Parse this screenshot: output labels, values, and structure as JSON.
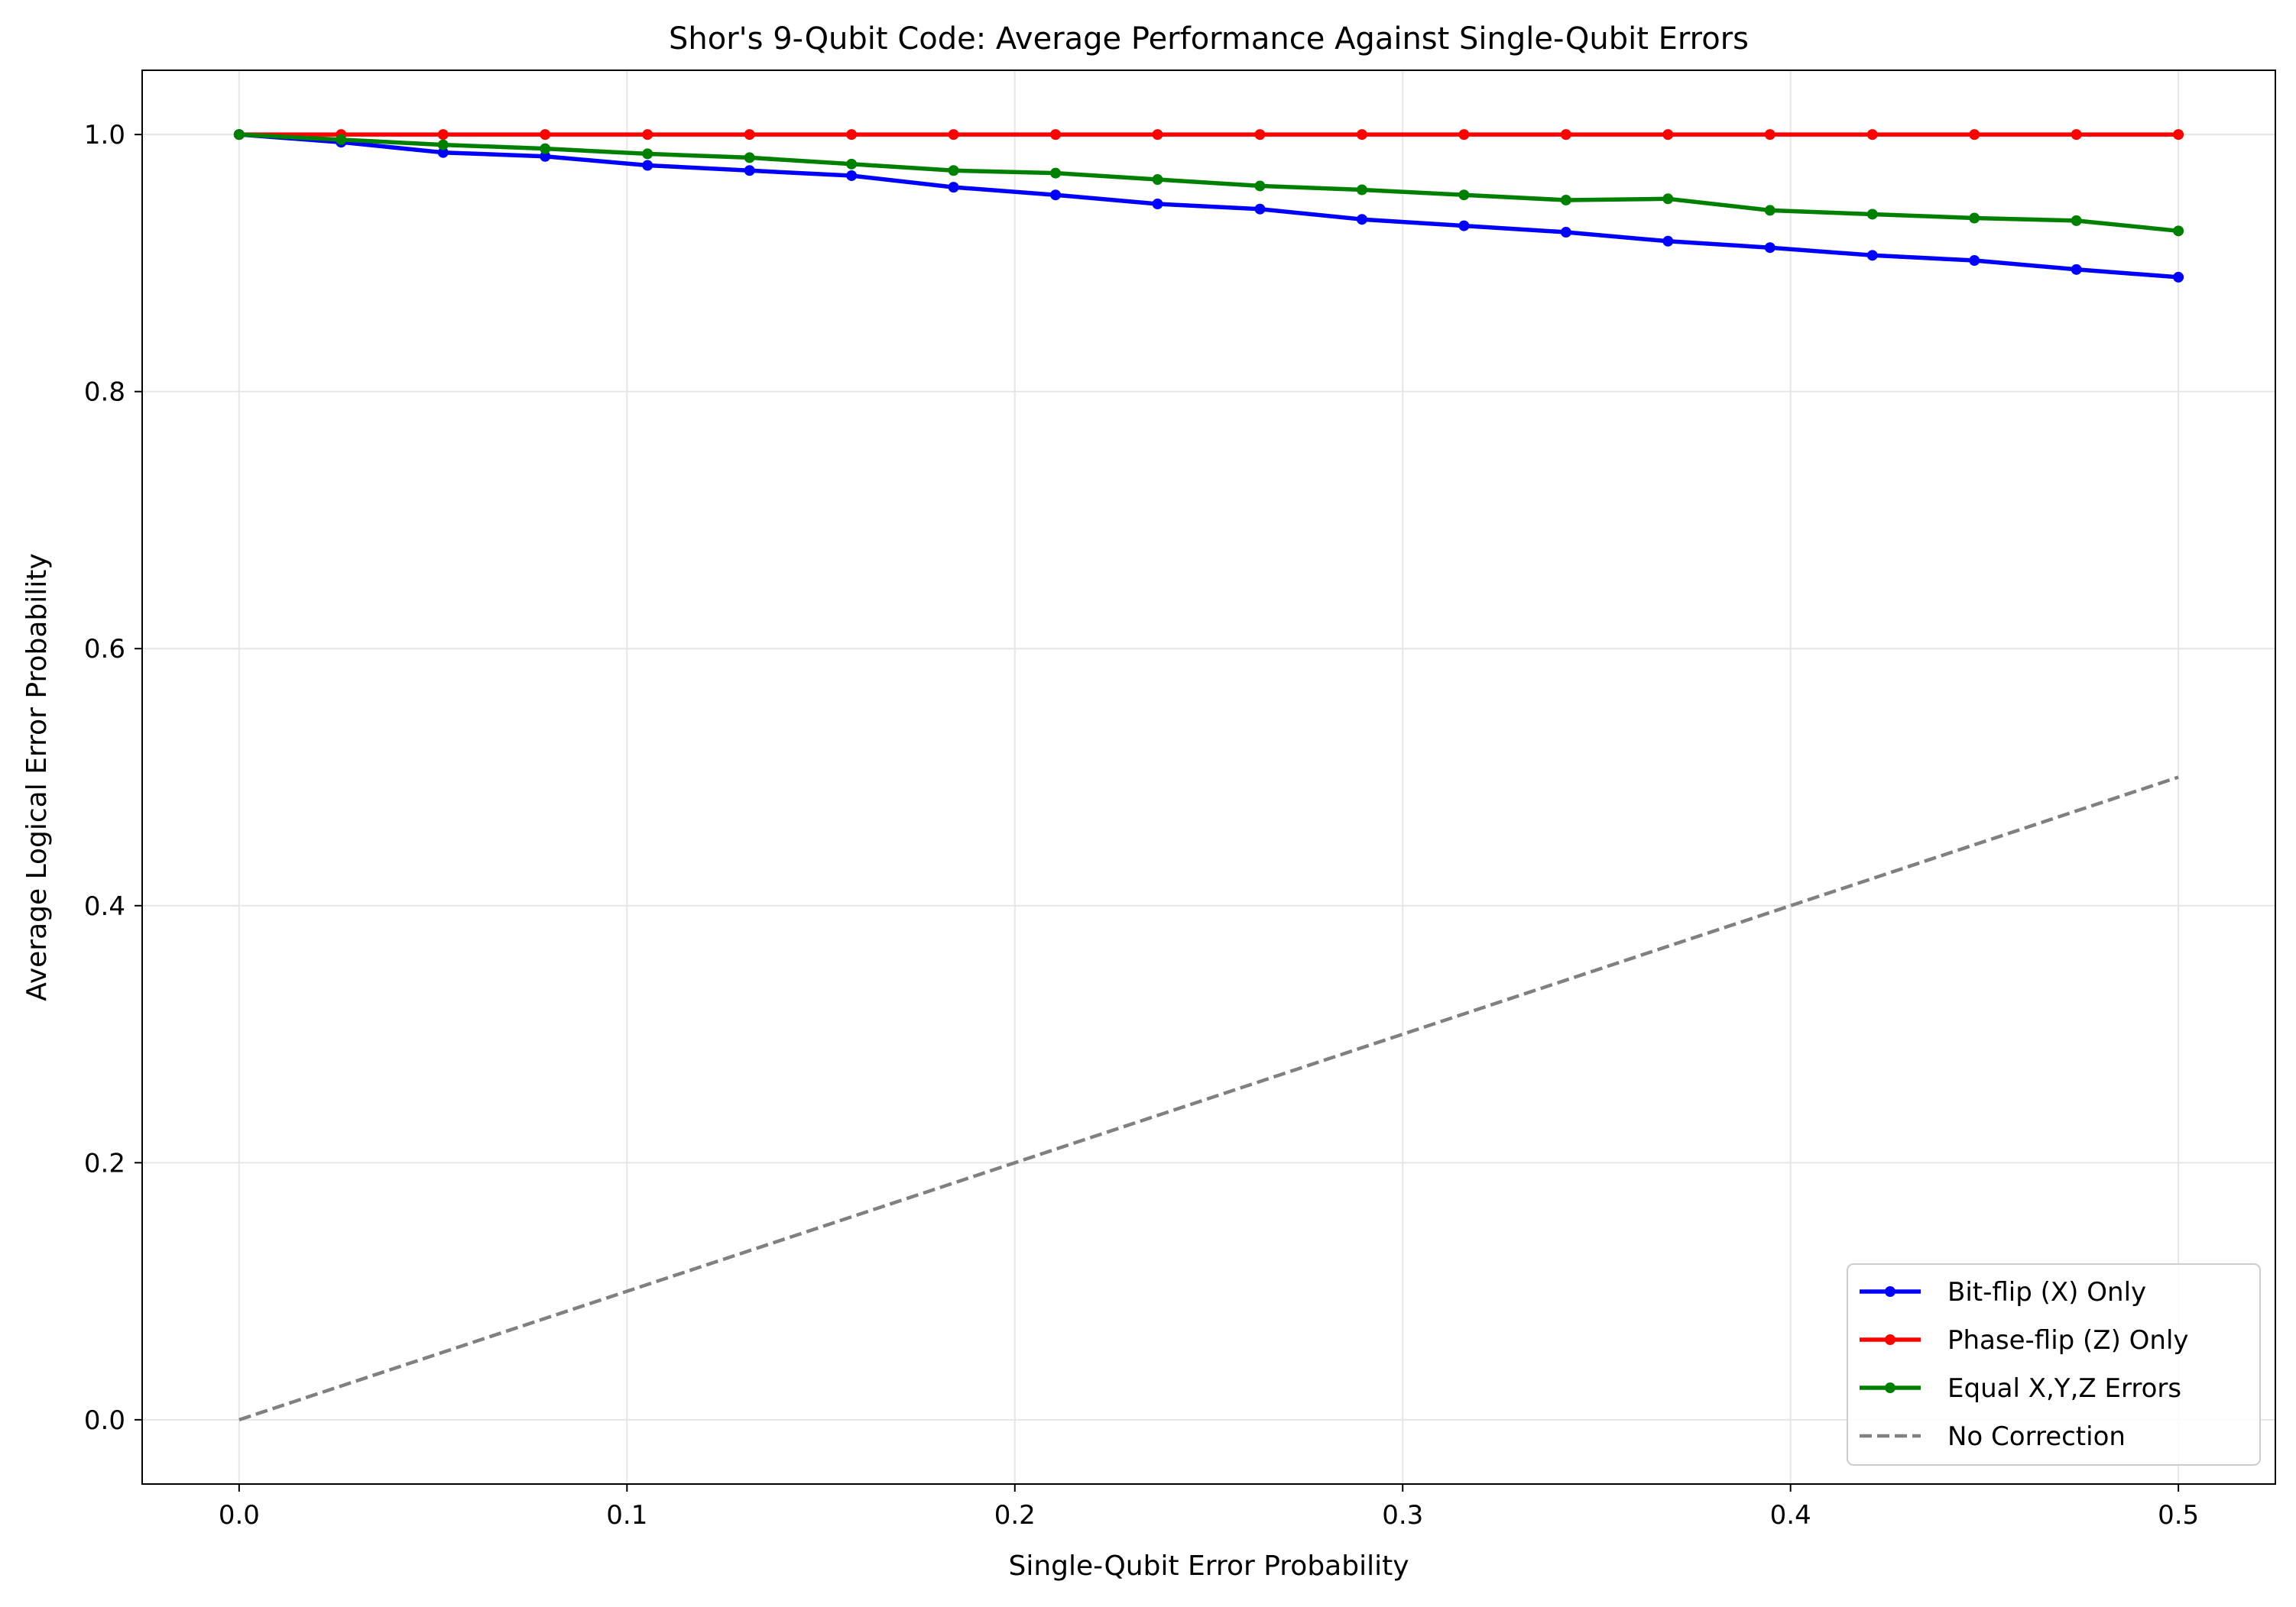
{
  "chart_data": {
    "type": "line",
    "title": "Shor's 9-Qubit Code: Average Performance Against Single-Qubit Errors",
    "xlabel": "Single-Qubit Error Probability",
    "ylabel": "Average Logical Error Probability",
    "xlim": [
      -0.025,
      0.525
    ],
    "ylim": [
      -0.05,
      1.05
    ],
    "xticks": [
      0.0,
      0.1,
      0.2,
      0.3,
      0.4,
      0.5
    ],
    "xtick_labels": [
      "0.0",
      "0.1",
      "0.2",
      "0.3",
      "0.4",
      "0.5"
    ],
    "yticks": [
      0.0,
      0.2,
      0.4,
      0.6,
      0.8,
      1.0
    ],
    "ytick_labels": [
      "0.0",
      "0.2",
      "0.4",
      "0.6",
      "0.8",
      "1.0"
    ],
    "grid": true,
    "legend_position": "lower-right",
    "x": [
      0.0,
      0.0263,
      0.0526,
      0.0789,
      0.1053,
      0.1316,
      0.1579,
      0.1842,
      0.2105,
      0.2368,
      0.2632,
      0.2895,
      0.3158,
      0.3421,
      0.3684,
      0.3947,
      0.4211,
      0.4474,
      0.4737,
      0.5
    ],
    "series": [
      {
        "name": "Bit-flip (X) Only",
        "color": "#0000ff",
        "style": "solid",
        "markers": true,
        "values": [
          1.0,
          0.994,
          0.986,
          0.983,
          0.976,
          0.972,
          0.968,
          0.959,
          0.953,
          0.946,
          0.942,
          0.934,
          0.929,
          0.924,
          0.917,
          0.912,
          0.906,
          0.902,
          0.895,
          0.889
        ]
      },
      {
        "name": "Phase-flip (Z) Only",
        "color": "#ff0000",
        "style": "solid",
        "markers": true,
        "values": [
          1.0,
          1.0,
          1.0,
          1.0,
          1.0,
          1.0,
          1.0,
          1.0,
          1.0,
          1.0,
          1.0,
          1.0,
          1.0,
          1.0,
          1.0,
          1.0,
          1.0,
          1.0,
          1.0,
          1.0
        ]
      },
      {
        "name": "Equal X,Y,Z Errors",
        "color": "#008000",
        "style": "solid",
        "markers": true,
        "values": [
          1.0,
          0.996,
          0.992,
          0.989,
          0.985,
          0.982,
          0.977,
          0.972,
          0.97,
          0.965,
          0.96,
          0.957,
          0.953,
          0.949,
          0.95,
          0.941,
          0.938,
          0.935,
          0.933,
          0.925
        ]
      },
      {
        "name": "No Correction",
        "color": "#808080",
        "style": "dashed",
        "markers": false,
        "x": [
          0.0,
          0.5
        ],
        "values": [
          0.0,
          0.5
        ]
      }
    ]
  }
}
